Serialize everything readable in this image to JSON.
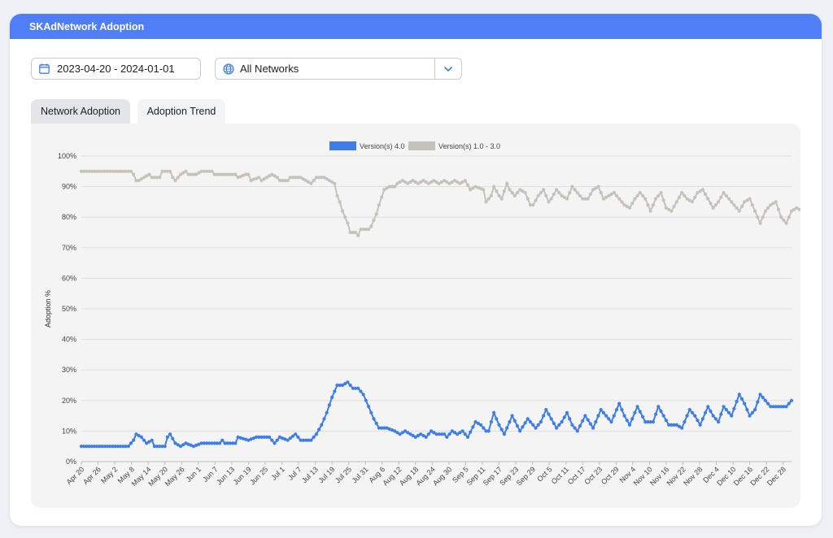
{
  "header": {
    "title": "SKAdNetwork Adoption"
  },
  "date_range": {
    "value": "2023-04-20 - 2024-01-01",
    "icon": "calendar-icon"
  },
  "network_select": {
    "value": "All Networks",
    "icon": "globe-icon",
    "caret_icon": "chevron-down-icon"
  },
  "tabs": [
    {
      "label": "Network Adoption",
      "active": true
    },
    {
      "label": "Adoption Trend",
      "active": false
    }
  ],
  "colors": {
    "header": "#4f7ef7",
    "v4": "#3f7ee8",
    "v1_3": "#c5c3b9"
  },
  "chart_data": {
    "type": "line",
    "title": "",
    "xlabel": "",
    "ylabel": "Adoption %",
    "ylim": [
      0,
      100
    ],
    "y_ticks": [
      "0%",
      "10%",
      "20%",
      "30%",
      "40%",
      "50%",
      "60%",
      "70%",
      "80%",
      "90%",
      "100%"
    ],
    "x_ticks": [
      "Apr 20",
      "Apr 26",
      "May 2",
      "May 8",
      "May 14",
      "May 20",
      "May 26",
      "Jun 1",
      "Jun 7",
      "Jun 13",
      "Jun 19",
      "Jun 25",
      "Jul 1",
      "Jul 7",
      "Jul 13",
      "Jul 19",
      "Jul 25",
      "Jul 31",
      "Aug 6",
      "Aug 12",
      "Aug 18",
      "Aug 24",
      "Aug 30",
      "Sep 5",
      "Sep 11",
      "Sep 17",
      "Sep 23",
      "Sep 29",
      "Oct 5",
      "Oct 11",
      "Oct 17",
      "Oct 23",
      "Oct 29",
      "Nov 4",
      "Nov 10",
      "Nov 16",
      "Nov 22",
      "Nov 28",
      "Dec 4",
      "Dec 10",
      "Dec 16",
      "Dec 22",
      "Dec 28"
    ],
    "legend_position": "top-center",
    "grid": true,
    "series": [
      {
        "name": "Version(s) 4.0",
        "color": "#3f7ee8",
        "points": [
          [
            0,
            5
          ],
          [
            18,
            5
          ],
          [
            20,
            7
          ],
          [
            21,
            9
          ],
          [
            23,
            8
          ],
          [
            25,
            6
          ],
          [
            27,
            7
          ],
          [
            28,
            5
          ],
          [
            32,
            5
          ],
          [
            33,
            8
          ],
          [
            34,
            9
          ],
          [
            36,
            6
          ],
          [
            38,
            5
          ],
          [
            40,
            6
          ],
          [
            43,
            5
          ],
          [
            46,
            6
          ],
          [
            53,
            6
          ],
          [
            54,
            7
          ],
          [
            55,
            6
          ],
          [
            59,
            6
          ],
          [
            60,
            8
          ],
          [
            64,
            7
          ],
          [
            67,
            8
          ],
          [
            72,
            8
          ],
          [
            73,
            7
          ],
          [
            74,
            6
          ],
          [
            76,
            8
          ],
          [
            79,
            7
          ],
          [
            82,
            9
          ],
          [
            84,
            7
          ],
          [
            88,
            7
          ],
          [
            90,
            9
          ],
          [
            92,
            12
          ],
          [
            94,
            16
          ],
          [
            96,
            21
          ],
          [
            98,
            25
          ],
          [
            100,
            25
          ],
          [
            102,
            26
          ],
          [
            104,
            24
          ],
          [
            106,
            24
          ],
          [
            108,
            22
          ],
          [
            110,
            18
          ],
          [
            112,
            14
          ],
          [
            114,
            11
          ],
          [
            117,
            11
          ],
          [
            120,
            10
          ],
          [
            122,
            9
          ],
          [
            124,
            10
          ],
          [
            126,
            9
          ],
          [
            128,
            8
          ],
          [
            130,
            9
          ],
          [
            132,
            8
          ],
          [
            134,
            10
          ],
          [
            136,
            9
          ],
          [
            139,
            9
          ],
          [
            140,
            8
          ],
          [
            142,
            10
          ],
          [
            144,
            9
          ],
          [
            146,
            10
          ],
          [
            148,
            8
          ],
          [
            151,
            13
          ],
          [
            153,
            12
          ],
          [
            155,
            10
          ],
          [
            156,
            10
          ],
          [
            158,
            16
          ],
          [
            160,
            12
          ],
          [
            162,
            9
          ],
          [
            165,
            15
          ],
          [
            168,
            10
          ],
          [
            171,
            14
          ],
          [
            174,
            11
          ],
          [
            176,
            13
          ],
          [
            178,
            17
          ],
          [
            180,
            14
          ],
          [
            182,
            11
          ],
          [
            184,
            13
          ],
          [
            186,
            16
          ],
          [
            188,
            12
          ],
          [
            190,
            10
          ],
          [
            193,
            15
          ],
          [
            196,
            11
          ],
          [
            199,
            17
          ],
          [
            201,
            15
          ],
          [
            203,
            13
          ],
          [
            206,
            19
          ],
          [
            208,
            15
          ],
          [
            210,
            12
          ],
          [
            213,
            18
          ],
          [
            216,
            13
          ],
          [
            219,
            13
          ],
          [
            221,
            18
          ],
          [
            223,
            15
          ],
          [
            225,
            12
          ],
          [
            228,
            12
          ],
          [
            230,
            11
          ],
          [
            233,
            17
          ],
          [
            235,
            15
          ],
          [
            237,
            12
          ],
          [
            240,
            18
          ],
          [
            242,
            15
          ],
          [
            244,
            13
          ],
          [
            246,
            18
          ],
          [
            249,
            15
          ],
          [
            252,
            22
          ],
          [
            254,
            19
          ],
          [
            256,
            15
          ],
          [
            258,
            17
          ],
          [
            260,
            22
          ],
          [
            262,
            20
          ],
          [
            264,
            18
          ],
          [
            270,
            18
          ],
          [
            272,
            20
          ]
        ]
      },
      {
        "name": "Version(s) 1.0 - 3.0",
        "color": "#c5c3b9",
        "points": [
          [
            0,
            95
          ],
          [
            19,
            95
          ],
          [
            20,
            94
          ],
          [
            21,
            92
          ],
          [
            22,
            92
          ],
          [
            24,
            93
          ],
          [
            26,
            94
          ],
          [
            27,
            93
          ],
          [
            30,
            93
          ],
          [
            31,
            95
          ],
          [
            34,
            95
          ],
          [
            35,
            93
          ],
          [
            36,
            92
          ],
          [
            38,
            94
          ],
          [
            40,
            95
          ],
          [
            41,
            94
          ],
          [
            44,
            94
          ],
          [
            46,
            95
          ],
          [
            50,
            95
          ],
          [
            51,
            94
          ],
          [
            59,
            94
          ],
          [
            60,
            93
          ],
          [
            63,
            94
          ],
          [
            64,
            94
          ],
          [
            65,
            92
          ],
          [
            68,
            93
          ],
          [
            69,
            92
          ],
          [
            71,
            93
          ],
          [
            73,
            94
          ],
          [
            75,
            93
          ],
          [
            76,
            92
          ],
          [
            79,
            92
          ],
          [
            80,
            93
          ],
          [
            82,
            93
          ],
          [
            84,
            93
          ],
          [
            86,
            92
          ],
          [
            88,
            91
          ],
          [
            90,
            93
          ],
          [
            93,
            93
          ],
          [
            95,
            92
          ],
          [
            97,
            91
          ],
          [
            98,
            87
          ],
          [
            99,
            85
          ],
          [
            100,
            82
          ],
          [
            101,
            80
          ],
          [
            102,
            78
          ],
          [
            103,
            75
          ],
          [
            105,
            75
          ],
          [
            106,
            74
          ],
          [
            107,
            76
          ],
          [
            110,
            76
          ],
          [
            111,
            77
          ],
          [
            112,
            79
          ],
          [
            113,
            81
          ],
          [
            114,
            84
          ],
          [
            116,
            89
          ],
          [
            118,
            90
          ],
          [
            120,
            90
          ],
          [
            121,
            91
          ],
          [
            123,
            92
          ],
          [
            125,
            91
          ],
          [
            127,
            92
          ],
          [
            129,
            91
          ],
          [
            131,
            92
          ],
          [
            133,
            91
          ],
          [
            135,
            92
          ],
          [
            137,
            91
          ],
          [
            139,
            92
          ],
          [
            141,
            91
          ],
          [
            143,
            92
          ],
          [
            145,
            91
          ],
          [
            147,
            92
          ],
          [
            149,
            89
          ],
          [
            151,
            90
          ],
          [
            154,
            89
          ],
          [
            155,
            85
          ],
          [
            157,
            87
          ],
          [
            158,
            90
          ],
          [
            160,
            87
          ],
          [
            161,
            86
          ],
          [
            163,
            91
          ],
          [
            164,
            89
          ],
          [
            166,
            87
          ],
          [
            168,
            89
          ],
          [
            170,
            88
          ],
          [
            172,
            84
          ],
          [
            173,
            84
          ],
          [
            175,
            87
          ],
          [
            177,
            89
          ],
          [
            179,
            85
          ],
          [
            180,
            86
          ],
          [
            182,
            89
          ],
          [
            184,
            87
          ],
          [
            186,
            86
          ],
          [
            188,
            90
          ],
          [
            190,
            88
          ],
          [
            192,
            86
          ],
          [
            194,
            86
          ],
          [
            196,
            89
          ],
          [
            198,
            90
          ],
          [
            200,
            86
          ],
          [
            202,
            87
          ],
          [
            204,
            88
          ],
          [
            206,
            86
          ],
          [
            208,
            84
          ],
          [
            210,
            83
          ],
          [
            212,
            86
          ],
          [
            214,
            88
          ],
          [
            216,
            86
          ],
          [
            218,
            82
          ],
          [
            220,
            86
          ],
          [
            222,
            88
          ],
          [
            224,
            83
          ],
          [
            226,
            82
          ],
          [
            228,
            85
          ],
          [
            230,
            88
          ],
          [
            232,
            86
          ],
          [
            234,
            85
          ],
          [
            236,
            88
          ],
          [
            238,
            89
          ],
          [
            240,
            86
          ],
          [
            242,
            83
          ],
          [
            244,
            85
          ],
          [
            246,
            88
          ],
          [
            248,
            86
          ],
          [
            250,
            84
          ],
          [
            252,
            82
          ],
          [
            254,
            85
          ],
          [
            256,
            86
          ],
          [
            258,
            82
          ],
          [
            260,
            78
          ],
          [
            262,
            82
          ],
          [
            264,
            84
          ],
          [
            266,
            85
          ],
          [
            268,
            80
          ],
          [
            270,
            78
          ],
          [
            272,
            82
          ],
          [
            274,
            83
          ],
          [
            276,
            82
          ],
          [
            280,
            82
          ],
          [
            282,
            80
          ]
        ]
      }
    ]
  }
}
